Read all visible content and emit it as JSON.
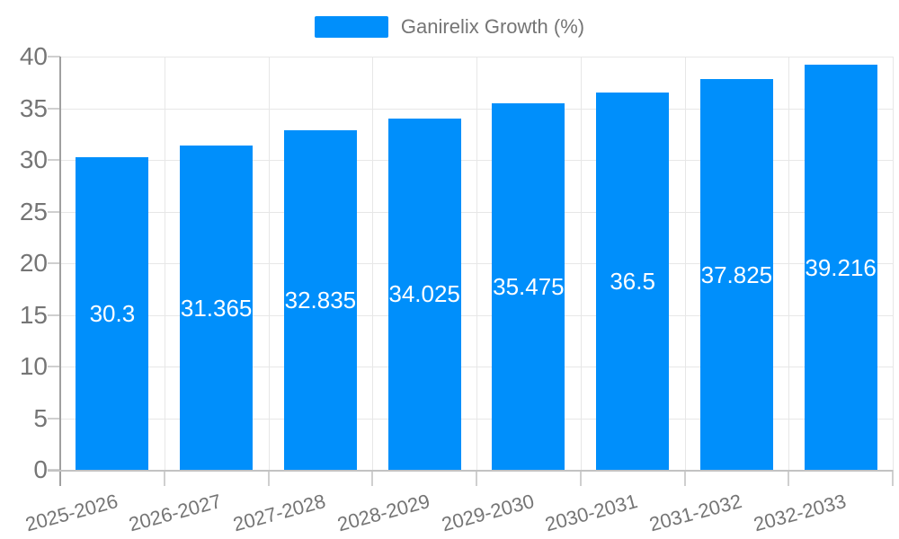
{
  "legend": {
    "label": "Ganirelix Growth (%)"
  },
  "chart_data": {
    "type": "bar",
    "title": "",
    "xlabel": "",
    "ylabel": "",
    "series_name": "Ganirelix Growth (%)",
    "categories": [
      "2025-2026",
      "2026-2027",
      "2027-2028",
      "2028-2029",
      "2029-2030",
      "2030-2031",
      "2031-2032",
      "2032-2033"
    ],
    "values": [
      30.3,
      31.365,
      32.835,
      34.025,
      35.475,
      36.5,
      37.825,
      39.216
    ],
    "value_labels": [
      "30.3",
      "31.365",
      "32.835",
      "34.025",
      "35.475",
      "36.5",
      "37.825",
      "39.216"
    ],
    "ylim": [
      0,
      40
    ],
    "yticks": [
      0,
      5,
      10,
      15,
      20,
      25,
      30,
      35,
      40
    ],
    "grid": true,
    "legend_position": "top",
    "colors": {
      "bar": "#008FFB",
      "axis_label": "#757575",
      "value_label": "#ffffff",
      "grid_line": "#e7e7e7",
      "y_axis_line": "#a0a0a0",
      "x_axis_line": "#c2c2c2",
      "background": "#ffffff"
    }
  }
}
